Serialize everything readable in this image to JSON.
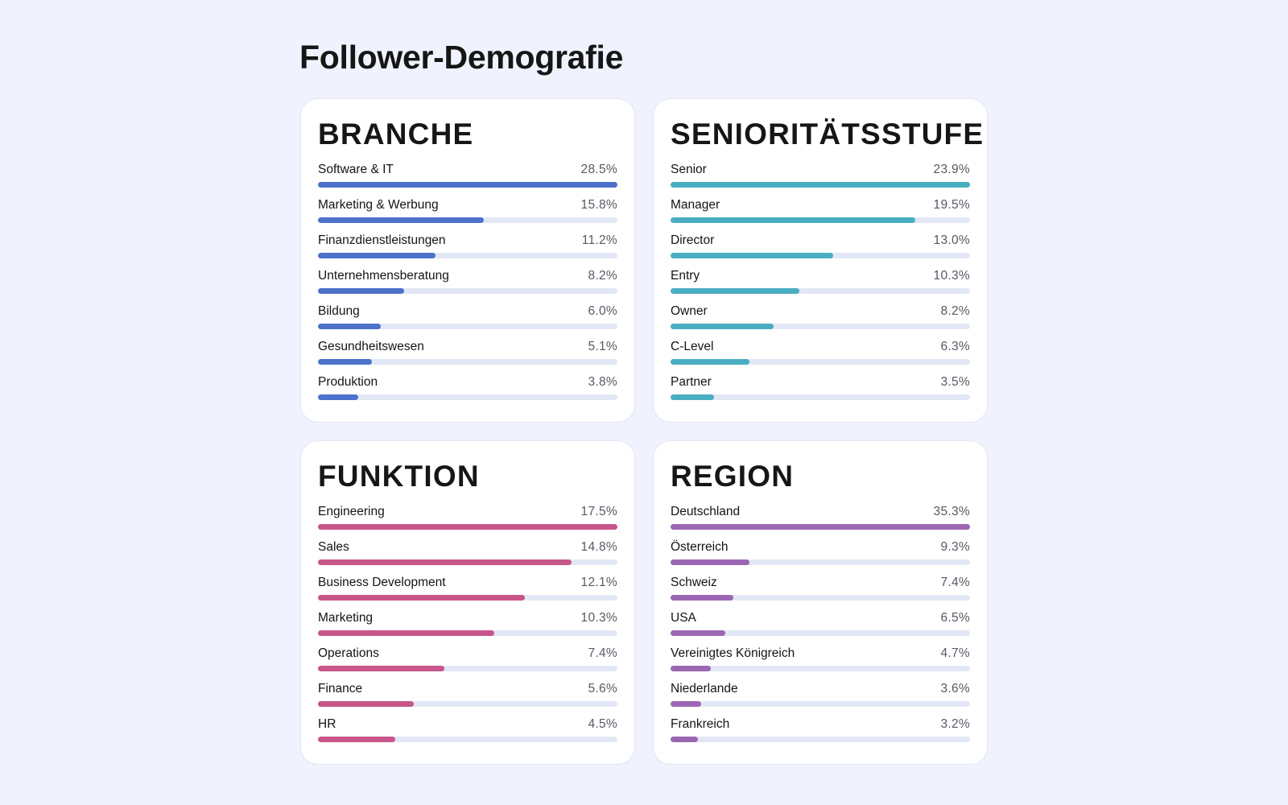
{
  "page": {
    "title": "Follower-Demografie"
  },
  "chart_data": [
    {
      "type": "bar",
      "title": "BRANCHE",
      "color": "#4c72c9",
      "categories": [
        "Software & IT",
        "Marketing & Werbung",
        "Finanzdienstleistungen",
        "Unternehmensberatung",
        "Bildung",
        "Gesundheitswesen",
        "Produktion"
      ],
      "values": [
        28.5,
        15.8,
        11.2,
        8.2,
        6.0,
        5.1,
        3.8
      ],
      "labels": [
        "28.5%",
        "15.8%",
        "11.2%",
        "8.2%",
        "6.0%",
        "5.1%",
        "3.8%"
      ]
    },
    {
      "type": "bar",
      "title": "SENIORITÄTSSTUFE",
      "color": "#4aaec2",
      "categories": [
        "Senior",
        "Manager",
        "Director",
        "Entry",
        "Owner",
        "C-Level",
        "Partner"
      ],
      "values": [
        23.9,
        19.5,
        13.0,
        10.3,
        8.2,
        6.3,
        3.5
      ],
      "labels": [
        "23.9%",
        "19.5%",
        "13.0%",
        "10.3%",
        "8.2%",
        "6.3%",
        "3.5%"
      ]
    },
    {
      "type": "bar",
      "title": "FUNKTION",
      "color": "#c8568a",
      "categories": [
        "Engineering",
        "Sales",
        "Business Development",
        "Marketing",
        "Operations",
        "Finance",
        "HR"
      ],
      "values": [
        17.5,
        14.8,
        12.1,
        10.3,
        7.4,
        5.6,
        4.5
      ],
      "labels": [
        "17.5%",
        "14.8%",
        "12.1%",
        "10.3%",
        "7.4%",
        "5.6%",
        "4.5%"
      ]
    },
    {
      "type": "bar",
      "title": "REGION",
      "color": "#9b67b3",
      "categories": [
        "Deutschland",
        "Österreich",
        "Schweiz",
        "USA",
        "Vereinigtes Königreich",
        "Niederlande",
        "Frankreich"
      ],
      "values": [
        35.3,
        9.3,
        7.4,
        6.5,
        4.7,
        3.6,
        3.2
      ],
      "labels": [
        "35.3%",
        "9.3%",
        "7.4%",
        "6.5%",
        "4.7%",
        "3.6%",
        "3.2%"
      ]
    }
  ]
}
